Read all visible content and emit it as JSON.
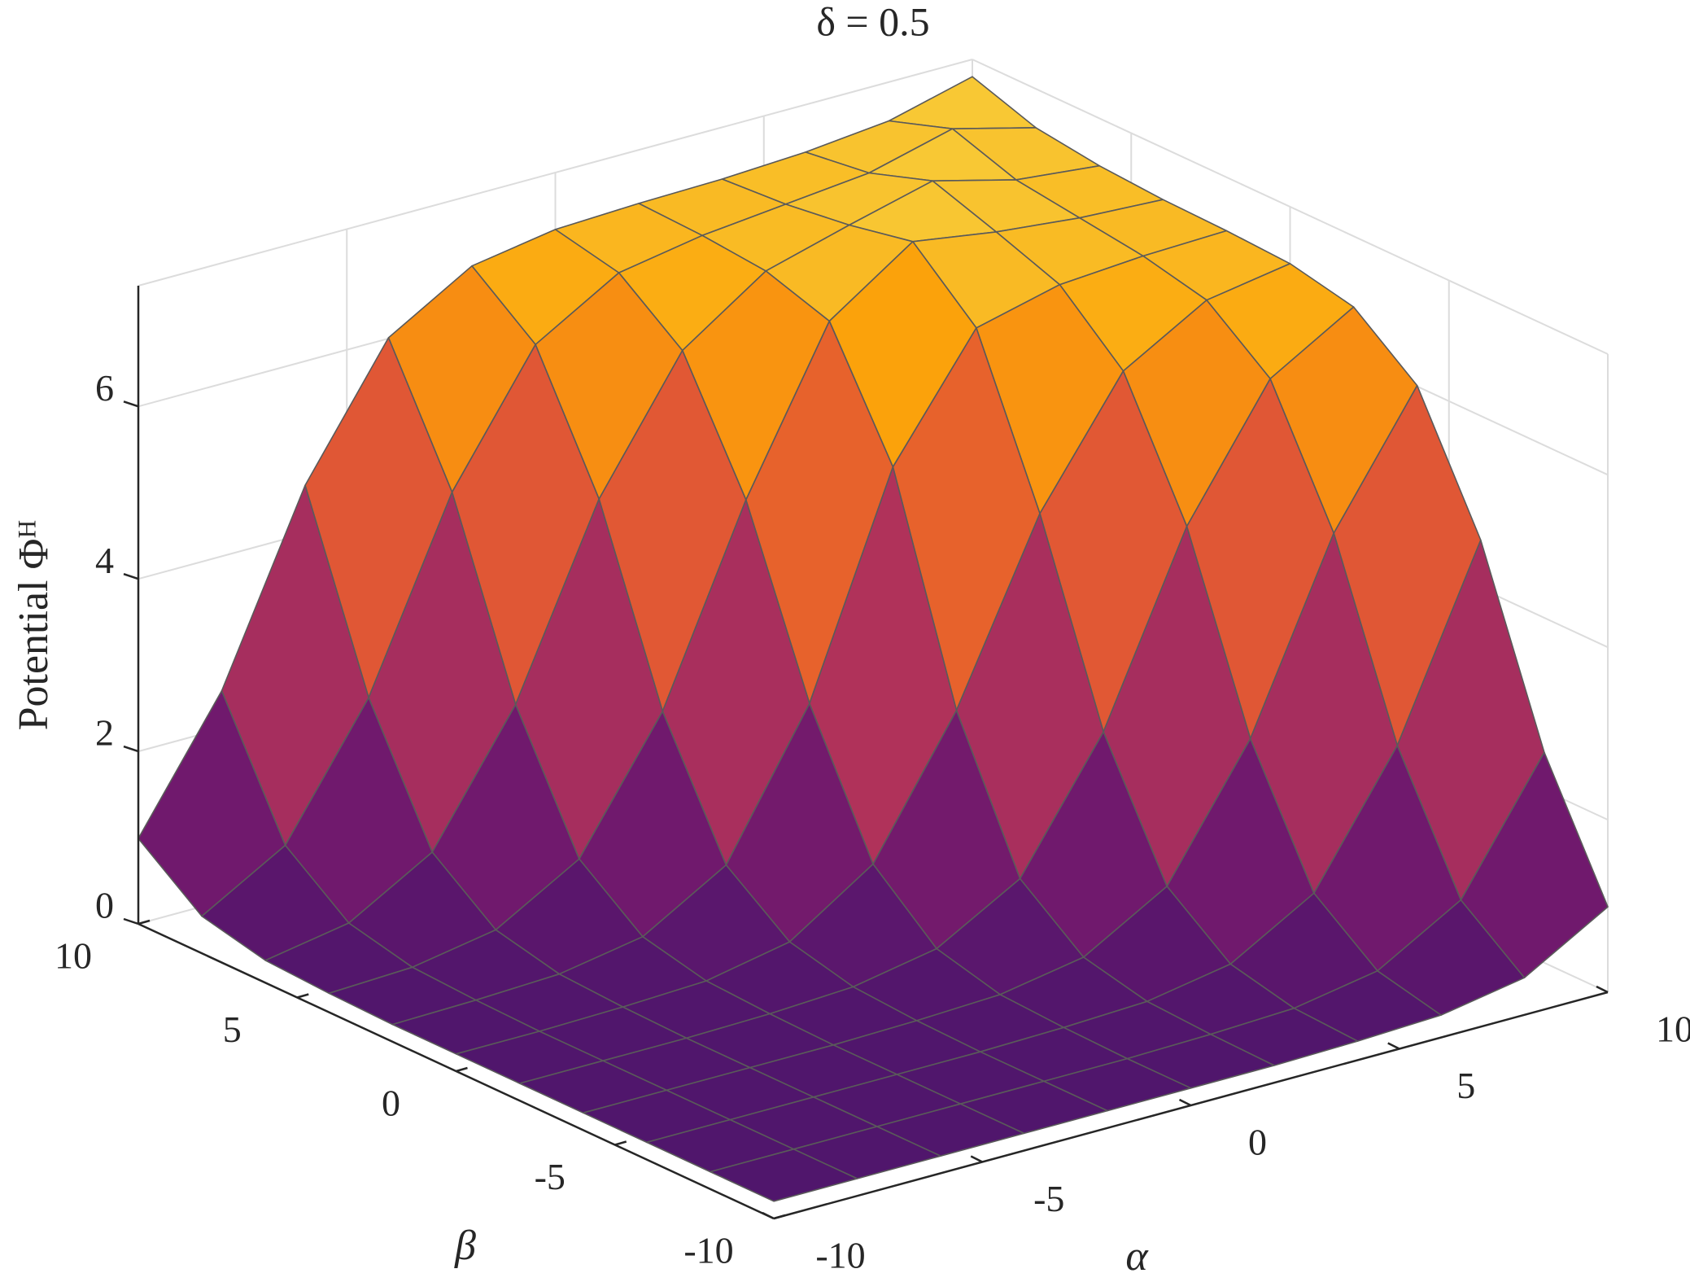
{
  "chart_data": {
    "type": "surface",
    "title": "δ = 0.5",
    "xlabel": "α",
    "ylabel": "β",
    "zlabel": "Potential Φᴴ",
    "x": [
      -10,
      -8,
      -6,
      -4,
      -2,
      0,
      2,
      4,
      6,
      8,
      10
    ],
    "y": [
      -10,
      -8,
      -6,
      -4,
      -2,
      0,
      2,
      4,
      6,
      8,
      10
    ],
    "z": [
      [
        0.2,
        0.2,
        0.2,
        0.2,
        0.2,
        0.2,
        0.2,
        0.22,
        0.26,
        0.43,
        0.99
      ],
      [
        0.2,
        0.2,
        0.2,
        0.2,
        0.2,
        0.2,
        0.22,
        0.26,
        0.43,
        0.99,
        2.44
      ],
      [
        0.2,
        0.2,
        0.2,
        0.2,
        0.2,
        0.22,
        0.26,
        0.43,
        0.99,
        2.44,
        4.56
      ],
      [
        0.2,
        0.2,
        0.2,
        0.2,
        0.22,
        0.26,
        0.43,
        0.99,
        2.44,
        4.56,
        6.01
      ],
      [
        0.2,
        0.2,
        0.2,
        0.22,
        0.27,
        0.45,
        1.0,
        2.44,
        4.56,
        6.01,
        6.58
      ],
      [
        0.2,
        0.2,
        0.22,
        0.26,
        0.45,
        1.09,
        2.61,
        4.63,
        6.02,
        6.58,
        6.74
      ],
      [
        0.2,
        0.22,
        0.26,
        0.43,
        1.0,
        2.61,
        5.09,
        6.44,
        6.68,
        6.75,
        6.78
      ],
      [
        0.22,
        0.26,
        0.43,
        0.99,
        2.44,
        4.63,
        6.44,
        7.1,
        6.95,
        6.85,
        6.8
      ],
      [
        0.26,
        0.43,
        0.99,
        2.44,
        4.56,
        6.02,
        6.68,
        6.95,
        7.2,
        6.95,
        6.85
      ],
      [
        0.43,
        0.99,
        2.44,
        4.56,
        6.01,
        6.58,
        6.75,
        6.85,
        6.95,
        7.2,
        6.95
      ],
      [
        0.99,
        2.44,
        4.56,
        6.01,
        6.58,
        6.74,
        6.78,
        6.8,
        6.85,
        6.95,
        7.2
      ]
    ],
    "xlim": [
      -10,
      10
    ],
    "ylim": [
      -10,
      10
    ],
    "zlim": [
      0,
      7.4
    ],
    "xticks": [
      -10,
      -5,
      0,
      5,
      10
    ],
    "yticks": [
      -10,
      -5,
      0,
      5,
      10
    ],
    "zticks": [
      0,
      2,
      4,
      6
    ],
    "grid": true,
    "colormap": [
      "#4a166b",
      "#6a176e",
      "#932667",
      "#bc3754",
      "#dd513a",
      "#f37819",
      "#fca50a",
      "#f6d746"
    ],
    "edgecolor": "#5a5a5a"
  }
}
